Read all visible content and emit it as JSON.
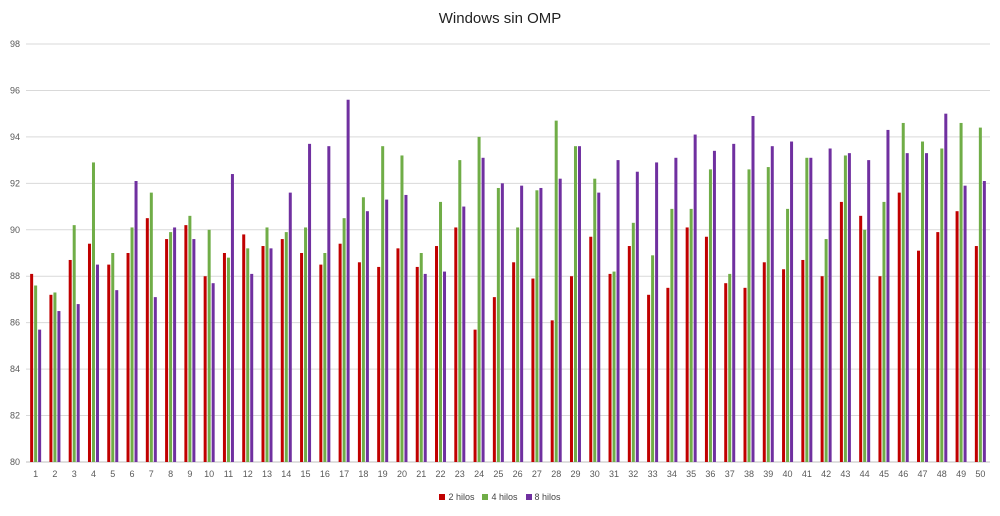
{
  "chart_data": {
    "type": "bar",
    "title": "Windows sin OMP",
    "xlabel": "",
    "ylabel": "",
    "ylim": [
      80,
      98
    ],
    "yticks": [
      80,
      82,
      84,
      86,
      88,
      90,
      92,
      94,
      96,
      98
    ],
    "grid": "horizontal",
    "legend_position": "bottom",
    "categories": [
      "1",
      "2",
      "3",
      "4",
      "5",
      "6",
      "7",
      "8",
      "9",
      "10",
      "11",
      "12",
      "13",
      "14",
      "15",
      "16",
      "17",
      "18",
      "19",
      "20",
      "21",
      "22",
      "23",
      "24",
      "25",
      "26",
      "27",
      "28",
      "29",
      "30",
      "31",
      "32",
      "33",
      "34",
      "35",
      "36",
      "37",
      "38",
      "39",
      "40",
      "41",
      "42",
      "43",
      "44",
      "45",
      "46",
      "47",
      "48",
      "49",
      "50"
    ],
    "series": [
      {
        "name": "2 hilos",
        "color": "#c00000",
        "values": [
          88.1,
          87.2,
          88.7,
          89.4,
          88.5,
          89.0,
          90.5,
          89.6,
          90.2,
          88.0,
          89.0,
          89.8,
          89.3,
          89.6,
          89.0,
          88.5,
          89.4,
          88.6,
          88.4,
          89.2,
          88.4,
          89.3,
          90.1,
          85.7,
          87.1,
          88.6,
          87.9,
          86.1,
          88.0,
          89.7,
          88.1,
          89.3,
          87.2,
          87.5,
          90.1,
          89.7,
          87.7,
          87.5,
          88.6,
          88.3,
          88.7,
          88.0,
          91.2,
          90.6,
          88.0,
          91.6,
          89.1,
          89.9,
          90.8,
          89.3
        ]
      },
      {
        "name": "4 hilos",
        "color": "#70ad47",
        "values": [
          87.6,
          87.3,
          90.2,
          92.9,
          89.0,
          90.1,
          91.6,
          89.9,
          90.6,
          90.0,
          88.8,
          89.2,
          90.1,
          89.9,
          90.1,
          89.0,
          90.5,
          91.4,
          93.6,
          93.2,
          89.0,
          91.2,
          93.0,
          94.0,
          91.8,
          90.1,
          91.7,
          94.7,
          93.6,
          92.2,
          88.2,
          90.3,
          88.9,
          90.9,
          90.9,
          92.6,
          88.1,
          92.6,
          92.7,
          90.9,
          93.1,
          89.6,
          93.2,
          90.0,
          91.2,
          94.6,
          93.8,
          93.5,
          94.6,
          94.4
        ]
      },
      {
        "name": "8 hilos",
        "color": "#7030a0",
        "values": [
          85.7,
          86.5,
          86.8,
          88.5,
          87.4,
          92.1,
          87.1,
          90.1,
          89.6,
          87.7,
          92.4,
          88.1,
          89.2,
          91.6,
          93.7,
          93.6,
          95.6,
          90.8,
          91.3,
          91.5,
          88.1,
          88.2,
          91.0,
          93.1,
          92.0,
          91.9,
          91.8,
          92.2,
          93.6,
          91.6,
          93.0,
          92.5,
          92.9,
          93.1,
          94.1,
          93.4,
          93.7,
          94.9,
          93.6,
          93.8,
          93.1,
          93.5,
          93.3,
          93.0,
          94.3,
          93.3,
          93.3,
          95.0,
          91.9,
          92.1
        ]
      }
    ]
  }
}
